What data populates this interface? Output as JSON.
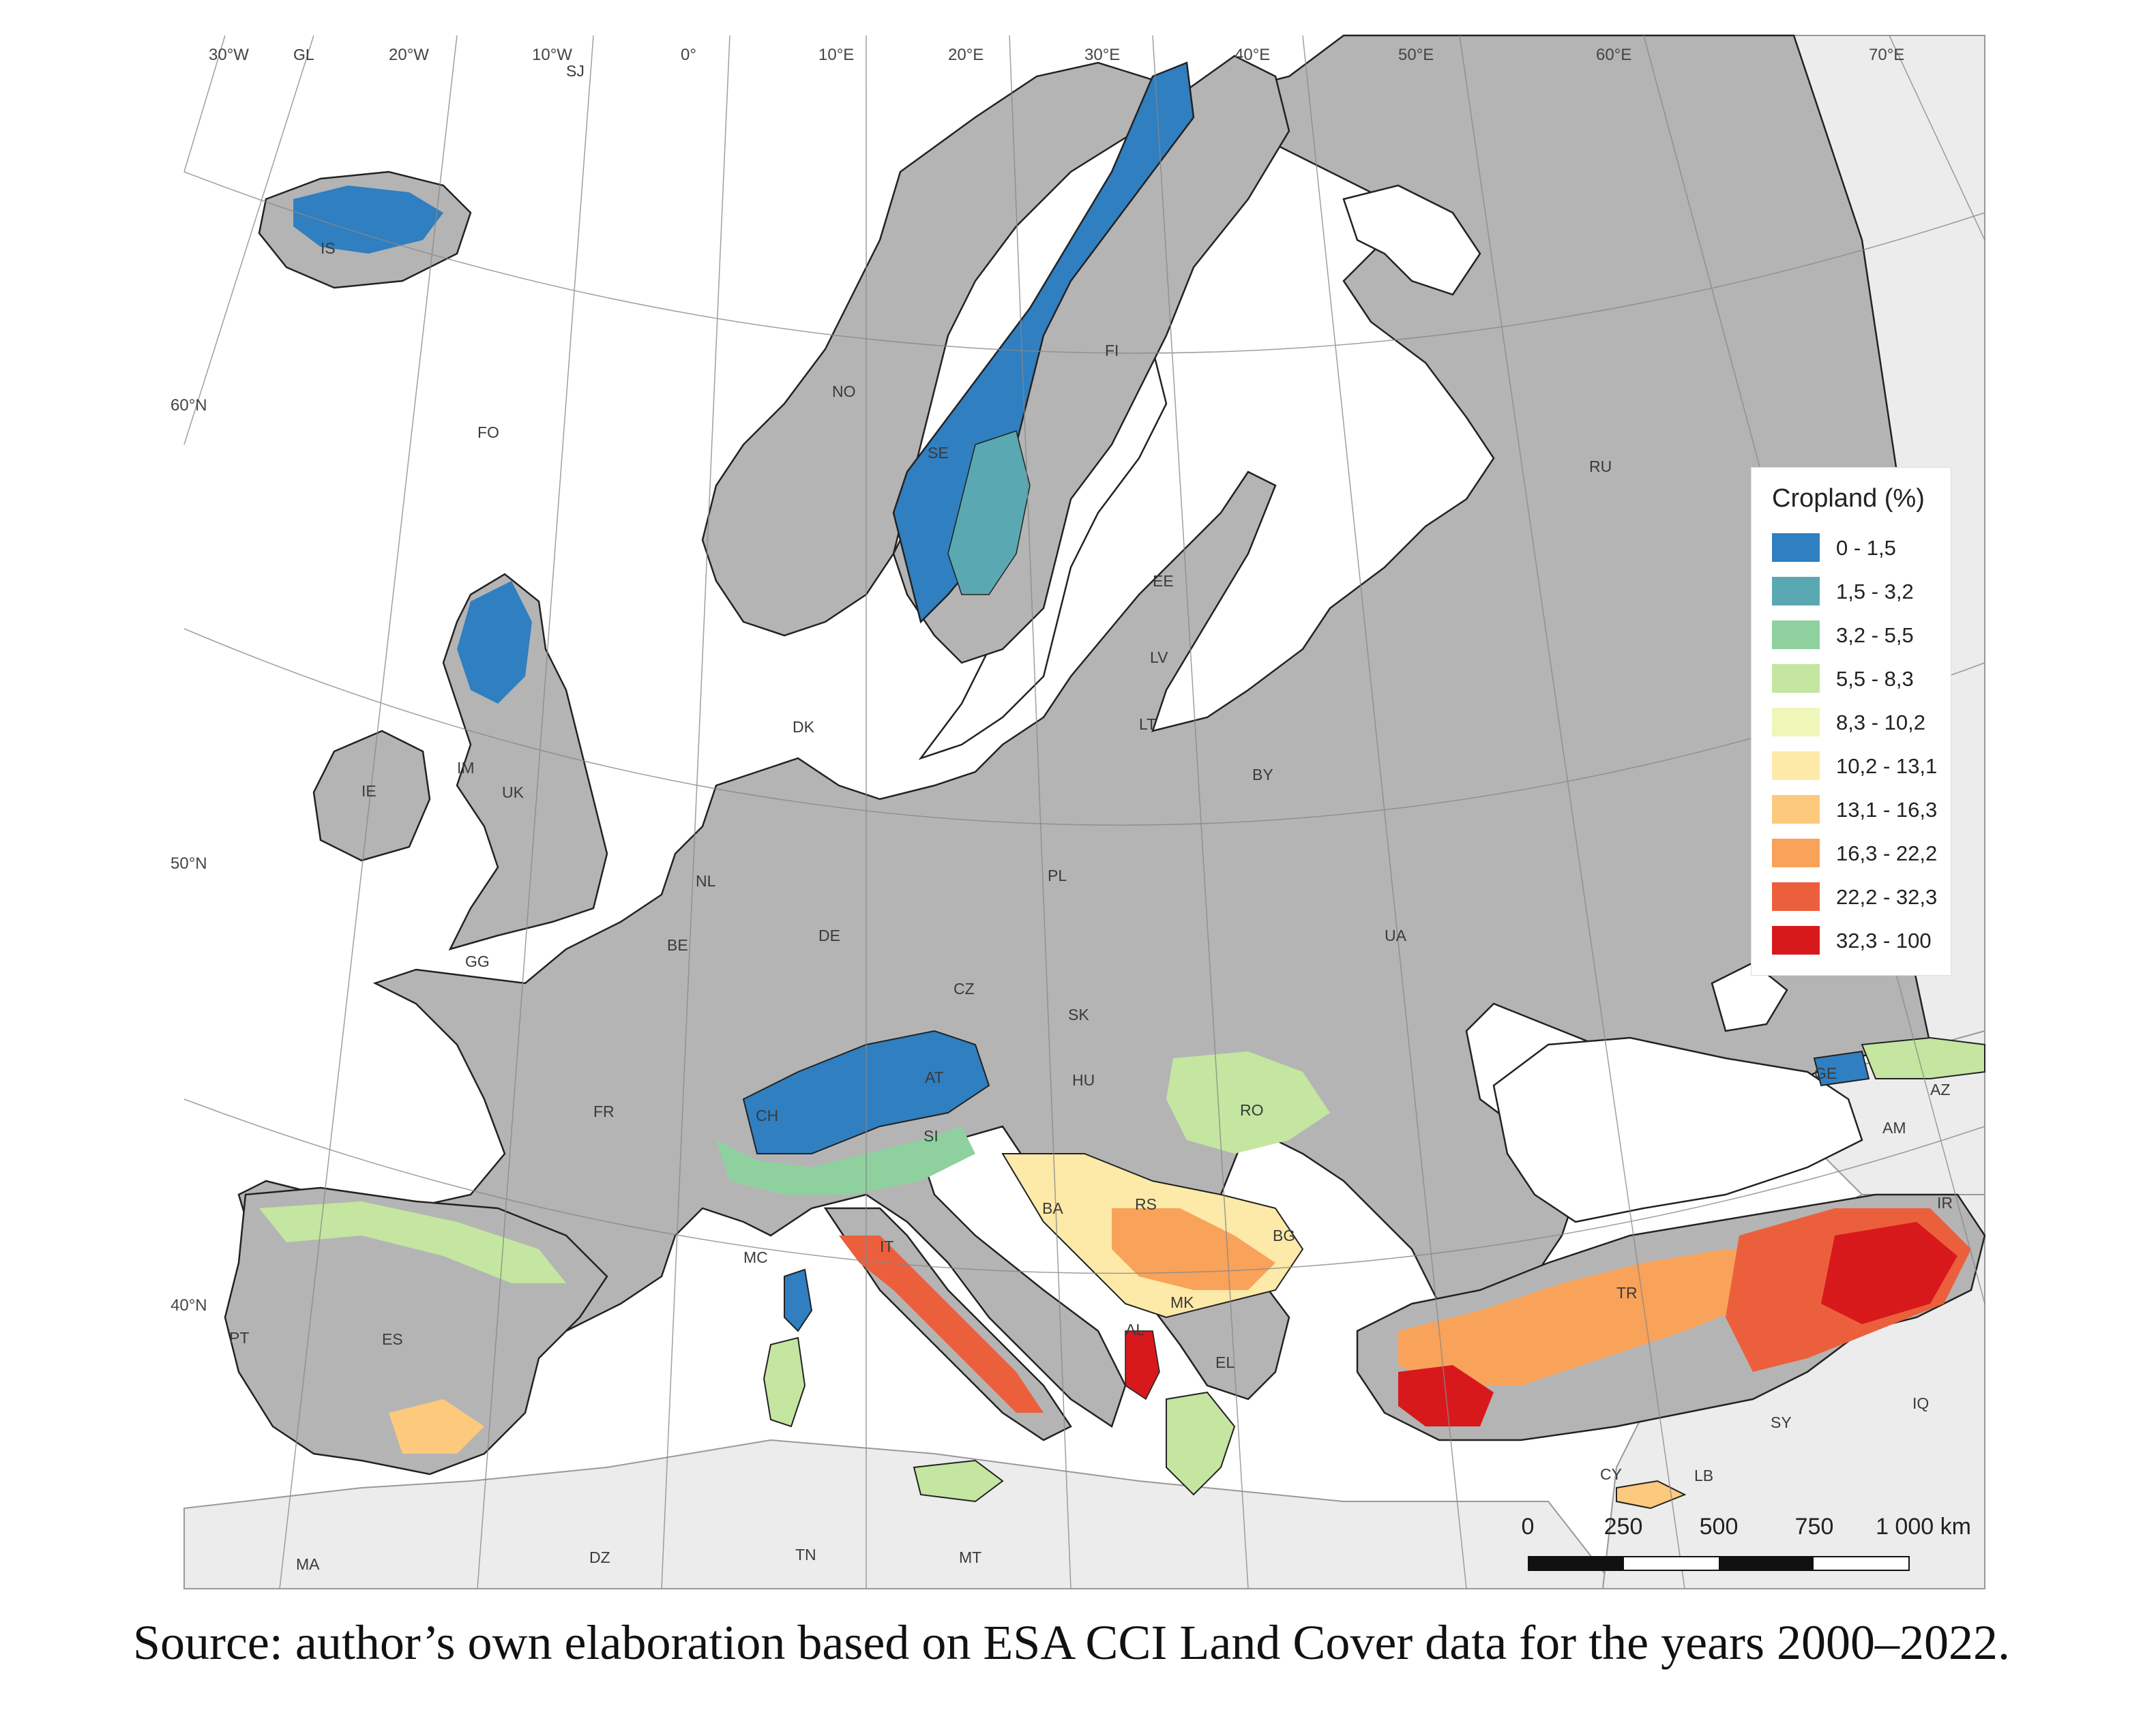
{
  "map": {
    "graticule_lon": [
      "30°W",
      "20°W",
      "10°W",
      "0°",
      "10°E",
      "20°E",
      "30°E",
      "40°E",
      "50°E",
      "60°E",
      "70°E"
    ],
    "graticule_lat": [
      "60°N",
      "50°N",
      "40°N"
    ],
    "countries": [
      "GL",
      "SJ",
      "IS",
      "FO",
      "NO",
      "SE",
      "FI",
      "RU",
      "EE",
      "LV",
      "LT",
      "BY",
      "DK",
      "IE",
      "IM",
      "UK",
      "NL",
      "BE",
      "DE",
      "PL",
      "UA",
      "GG",
      "FR",
      "CZ",
      "SK",
      "AT",
      "CH",
      "HU",
      "RO",
      "SI",
      "BA",
      "RS",
      "BG",
      "IT",
      "MC",
      "MK",
      "AL",
      "EL",
      "TR",
      "GE",
      "AZ",
      "AM",
      "IR",
      "ES",
      "PT",
      "SY",
      "IQ",
      "CY",
      "LB",
      "MA",
      "DZ",
      "TN",
      "MT"
    ],
    "colors": {
      "sea": "#ffffff",
      "land_outside": "#ececec",
      "land_grey": "#b4b4b4",
      "border": "#222222"
    }
  },
  "legend": {
    "title": "Cropland (%)",
    "classes": [
      {
        "label": "0 - 1,5",
        "color": "#2f7fc1"
      },
      {
        "label": "1,5 - 3,2",
        "color": "#5aa9b2"
      },
      {
        "label": "3,2 - 5,5",
        "color": "#8fd19e"
      },
      {
        "label": "5,5 - 8,3",
        "color": "#c4e6a0"
      },
      {
        "label": "8,3 - 10,2",
        "color": "#eef6b8"
      },
      {
        "label": "10,2 - 13,1",
        "color": "#fde9a8"
      },
      {
        "label": "13,1 - 16,3",
        "color": "#fdc97d"
      },
      {
        "label": "16,3 - 22,2",
        "color": "#f9a25a"
      },
      {
        "label": "22,2 - 32,3",
        "color": "#ec5f3d"
      },
      {
        "label": "32,3 - 100",
        "color": "#d7191c"
      }
    ]
  },
  "scale": {
    "labels": [
      "0",
      "250",
      "500",
      "750",
      "1 000 km"
    ]
  },
  "caption": "Source: author’s own elaboration based on ESA CCI Land Cover data for the years 2000–2022."
}
